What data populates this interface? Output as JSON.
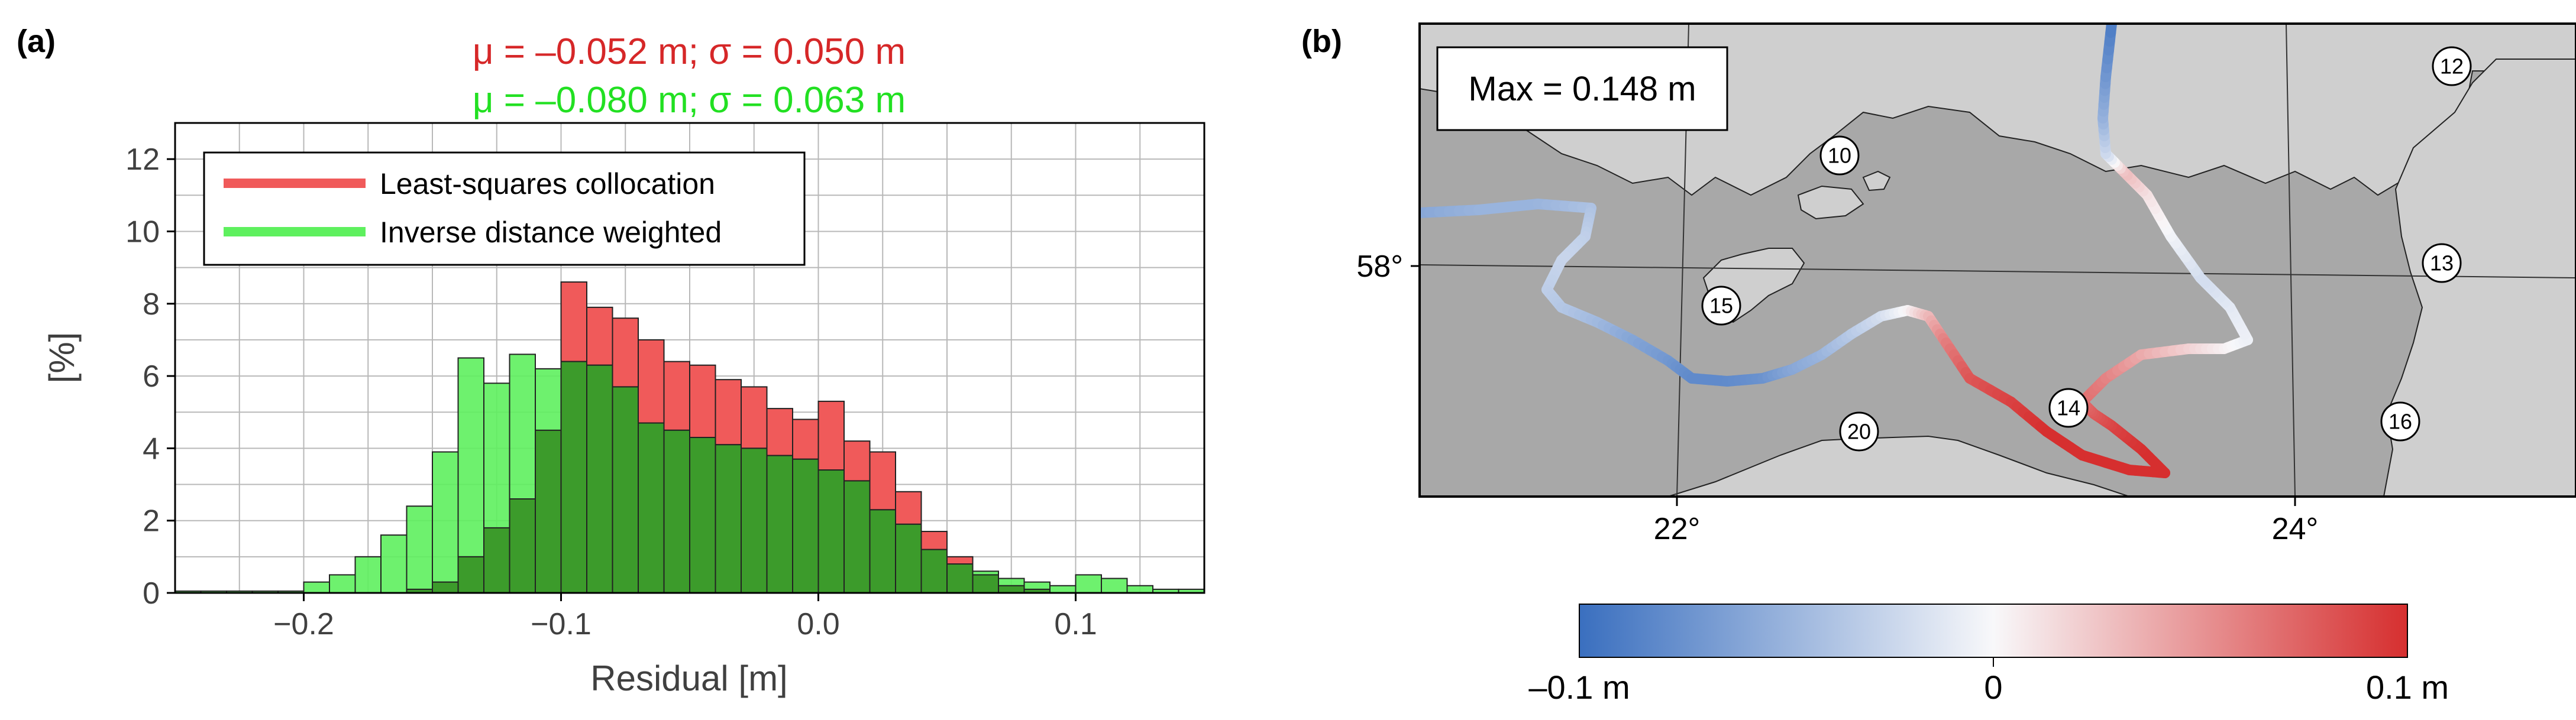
{
  "chart_data": [
    {
      "type": "bar",
      "panel": "(a)",
      "annotations": [
        {
          "text": "μ = –0.052 m; σ = 0.050 m",
          "color": "#d62728"
        },
        {
          "text": "μ = –0.080 m; σ = 0.063 m",
          "color": "#22e022"
        }
      ],
      "xlabel": "Residual [m]",
      "ylabel": "[%]",
      "xlim": [
        -0.25,
        0.15
      ],
      "ylim": [
        0,
        13
      ],
      "xticks": [
        -0.2,
        -0.1,
        0.0,
        0.1
      ],
      "xtick_labels": [
        "−0.2",
        "−0.1",
        "0.0",
        "0.1"
      ],
      "yticks": [
        0,
        2,
        4,
        6,
        8,
        10,
        12
      ],
      "ytick_labels": [
        "0",
        "2",
        "4",
        "6",
        "8",
        "10",
        "12"
      ],
      "grid": true,
      "legend_position": "top-left",
      "bin_width": 0.01,
      "bin_starts": [
        -0.25,
        -0.24,
        -0.23,
        -0.22,
        -0.21,
        -0.2,
        -0.19,
        -0.18,
        -0.17,
        -0.16,
        -0.15,
        -0.14,
        -0.13,
        -0.12,
        -0.11,
        -0.1,
        -0.09,
        -0.08,
        -0.07,
        -0.06,
        -0.05,
        -0.04,
        -0.03,
        -0.02,
        -0.01,
        0.0,
        0.01,
        0.02,
        0.03,
        0.04,
        0.05,
        0.06,
        0.07,
        0.08,
        0.09,
        0.1,
        0.11,
        0.12,
        0.13,
        0.14
      ],
      "series": [
        {
          "name": "Least-squares collocation",
          "color": "#f05a5a",
          "values": [
            0,
            0,
            0,
            0,
            0,
            0,
            0,
            0,
            0,
            0.1,
            0.3,
            1.0,
            1.8,
            2.6,
            4.5,
            8.6,
            7.9,
            7.6,
            7.0,
            6.4,
            6.3,
            5.9,
            5.7,
            5.1,
            4.8,
            5.3,
            4.2,
            3.9,
            2.8,
            1.7,
            1.0,
            0.5,
            0.2,
            0.1,
            0,
            0,
            0,
            0,
            0,
            0
          ]
        },
        {
          "name": "Inverse distance weighted",
          "color": "#5ef05e",
          "values": [
            0.05,
            0.05,
            0.05,
            0.05,
            0.05,
            0.3,
            0.5,
            1.0,
            1.6,
            2.4,
            3.9,
            6.5,
            5.8,
            6.6,
            6.2,
            6.4,
            6.3,
            5.7,
            4.7,
            4.5,
            4.3,
            4.1,
            4.0,
            3.8,
            3.7,
            3.4,
            3.1,
            2.3,
            1.9,
            1.2,
            0.8,
            0.6,
            0.4,
            0.3,
            0.2,
            0.5,
            0.4,
            0.2,
            0.1,
            0.1
          ]
        }
      ]
    },
    {
      "type": "map",
      "panel": "(b)",
      "annotation": "Max = 0.148 m",
      "xticks": [
        22,
        24
      ],
      "xtick_labels": [
        "22°",
        "24°"
      ],
      "yticks": [
        58
      ],
      "ytick_labels": [
        "58°"
      ],
      "stations": [
        "10",
        "12",
        "13",
        "14",
        "15",
        "16",
        "20"
      ],
      "colorbar": {
        "min": -0.1,
        "max": 0.1,
        "labels": [
          "–0.1 m",
          "0",
          "0.1 m"
        ],
        "low_color": "#3a6fbf",
        "mid_color": "#f8f8fa",
        "high_color": "#d62f2f"
      }
    }
  ]
}
